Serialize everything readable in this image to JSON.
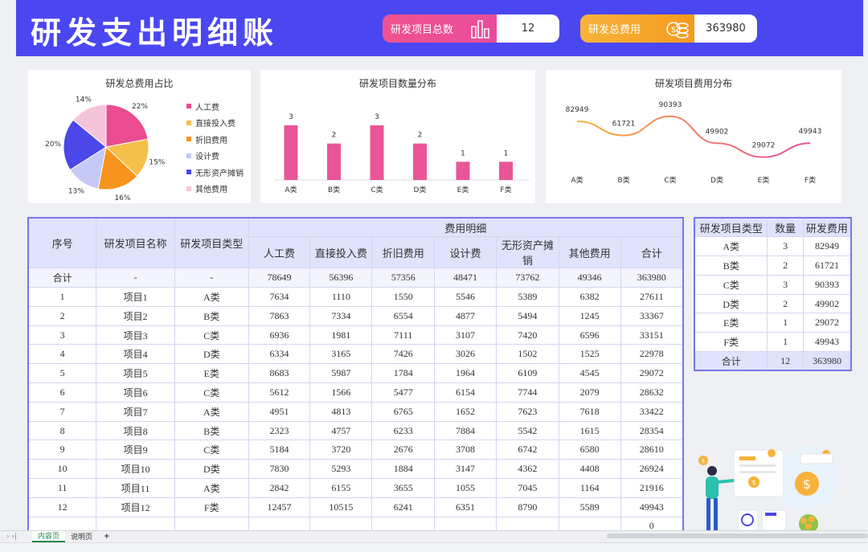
{
  "header": {
    "title": "研发支出明细账",
    "kpi_count_label": "研发项目总数",
    "kpi_count_value": "12",
    "kpi_cost_label": "研发总费用",
    "kpi_cost_value": "363980"
  },
  "pie_chart": {
    "title": "研发总费用占比",
    "slices": [
      {
        "label": "人工费",
        "pct": "22%",
        "value": 22,
        "color": "#e94c8f"
      },
      {
        "label": "直接投入费",
        "pct": "15%",
        "value": 15,
        "color": "#f5c04a"
      },
      {
        "label": "折旧费用",
        "pct": "16%",
        "value": 16,
        "color": "#f7941d"
      },
      {
        "label": "设计费",
        "pct": "13%",
        "value": 13,
        "color": "#c6c9f5"
      },
      {
        "label": "无形资产摊销",
        "pct": "20%",
        "value": 20,
        "color": "#4b47e8"
      },
      {
        "label": "其他费用",
        "pct": "14%",
        "value": 14,
        "color": "#f6c4da"
      }
    ]
  },
  "chart_data": [
    {
      "type": "pie",
      "title": "研发总费用占比",
      "categories": [
        "人工费",
        "直接投入费",
        "折旧费用",
        "设计费",
        "无形资产摊销",
        "其他费用"
      ],
      "values": [
        22,
        15,
        16,
        13,
        20,
        14
      ]
    },
    {
      "type": "bar",
      "title": "研发项目数量分布",
      "categories": [
        "A类",
        "B类",
        "C类",
        "D类",
        "E类",
        "F类"
      ],
      "values": [
        3,
        2,
        3,
        2,
        1,
        1
      ]
    },
    {
      "type": "line",
      "title": "研发项目费用分布",
      "categories": [
        "A类",
        "B类",
        "C类",
        "D类",
        "E类",
        "F类"
      ],
      "values": [
        82949,
        61721,
        90393,
        49902,
        29072,
        49943
      ]
    }
  ],
  "bar_chart": {
    "title": "研发项目数量分布",
    "labels": [
      "3",
      "2",
      "3",
      "2",
      "1",
      "1"
    ],
    "categories": [
      "A类",
      "B类",
      "C类",
      "D类",
      "E类",
      "F类"
    ]
  },
  "line_chart": {
    "title": "研发项目费用分布",
    "labels": [
      "82949",
      "61721",
      "90393",
      "49902",
      "29072",
      "49943"
    ],
    "categories": [
      "A类",
      "B类",
      "C类",
      "D类",
      "E类",
      "F类"
    ]
  },
  "main_table": {
    "headers": {
      "seq": "序号",
      "name": "研发项目名称",
      "type": "研发项目类型",
      "group": "费用明细",
      "cols": [
        "人工费",
        "直接投入费",
        "折旧费用",
        "设计费",
        "无形资产摊销",
        "其他费用",
        "合计"
      ]
    },
    "rows": [
      [
        "合计",
        "-",
        "-",
        "78649",
        "56396",
        "57356",
        "48471",
        "73762",
        "49346",
        "363980"
      ],
      [
        "1",
        "项目1",
        "A类",
        "7634",
        "1110",
        "1550",
        "5546",
        "5389",
        "6382",
        "27611"
      ],
      [
        "2",
        "项目2",
        "B类",
        "7863",
        "7334",
        "6554",
        "4877",
        "5494",
        "1245",
        "33367"
      ],
      [
        "3",
        "项目3",
        "C类",
        "6936",
        "1981",
        "7111",
        "3107",
        "7420",
        "6596",
        "33151"
      ],
      [
        "4",
        "项目4",
        "D类",
        "6334",
        "3165",
        "7426",
        "3026",
        "1502",
        "1525",
        "22978"
      ],
      [
        "5",
        "项目5",
        "E类",
        "8683",
        "5987",
        "1784",
        "1964",
        "6109",
        "4545",
        "29072"
      ],
      [
        "6",
        "项目6",
        "C类",
        "5612",
        "1566",
        "5477",
        "6154",
        "7744",
        "2079",
        "28632"
      ],
      [
        "7",
        "项目7",
        "A类",
        "4951",
        "4813",
        "6765",
        "1652",
        "7623",
        "7618",
        "33422"
      ],
      [
        "8",
        "项目8",
        "B类",
        "2323",
        "4757",
        "6233",
        "7884",
        "5542",
        "1615",
        "28354"
      ],
      [
        "9",
        "项目9",
        "C类",
        "5184",
        "3720",
        "2676",
        "3708",
        "6742",
        "6580",
        "28610"
      ],
      [
        "10",
        "项目10",
        "D类",
        "7830",
        "5293",
        "1884",
        "3147",
        "4362",
        "4408",
        "26924"
      ],
      [
        "11",
        "项目11",
        "A类",
        "2842",
        "6155",
        "3655",
        "1055",
        "7045",
        "1164",
        "21916"
      ],
      [
        "12",
        "项目12",
        "F类",
        "12457",
        "10515",
        "6241",
        "6351",
        "8790",
        "5589",
        "49943"
      ],
      [
        "",
        "",
        "",
        "",
        "",
        "",
        "",
        "",
        "",
        "0"
      ]
    ]
  },
  "side_table": {
    "headers": [
      "研发项目类型",
      "数量",
      "研发费用"
    ],
    "rows": [
      [
        "A类",
        "3",
        "82949"
      ],
      [
        "B类",
        "2",
        "61721"
      ],
      [
        "C类",
        "3",
        "90393"
      ],
      [
        "D类",
        "2",
        "49902"
      ],
      [
        "E类",
        "1",
        "29072"
      ],
      [
        "F类",
        "1",
        "49943"
      ],
      [
        "合计",
        "12",
        "363980"
      ]
    ]
  },
  "sheet_tabs": [
    "内容页",
    "说明页"
  ],
  "add_sheet": "+"
}
